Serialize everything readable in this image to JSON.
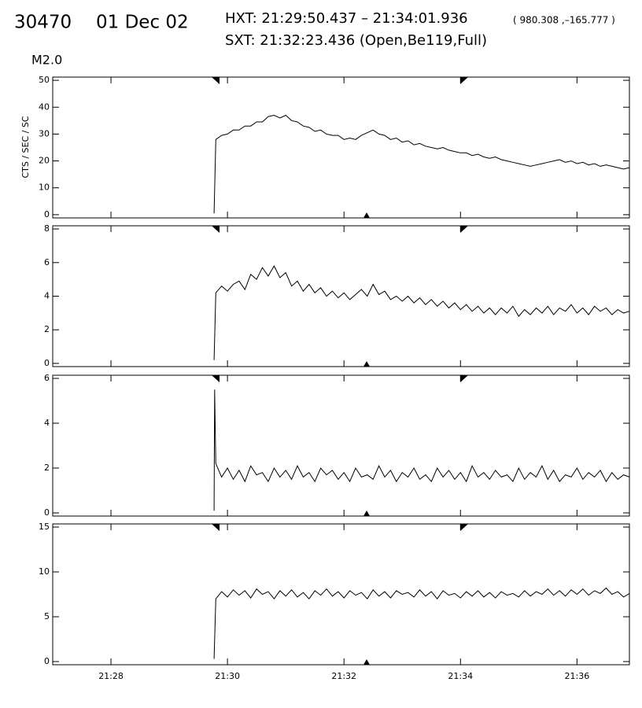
{
  "header": {
    "id": "30470",
    "date": "01 Dec 02",
    "hxt": "HXT: 21:29:50.437 – 21:34:01.936",
    "coords": "( 980.308 ,–165.777 )",
    "sxt": "SXT: 21:32:23.436 (Open,Be119,Full)",
    "class": "M2.0"
  },
  "chart_data": [
    {
      "type": "line",
      "ylabel": "CTS / SEC / SC",
      "color": "#000000",
      "xlim": [
        27.0,
        36.9
      ],
      "ylim": [
        -1.2,
        51.2
      ],
      "yticks": [
        0,
        10,
        20,
        30,
        40,
        50
      ],
      "x": [
        29.77,
        29.8,
        29.9,
        30.0,
        30.1,
        30.2,
        30.3,
        30.4,
        30.5,
        30.6,
        30.7,
        30.8,
        30.9,
        31.0,
        31.1,
        31.2,
        31.3,
        31.4,
        31.5,
        31.6,
        31.7,
        31.8,
        31.9,
        32.0,
        32.1,
        32.2,
        32.3,
        32.4,
        32.5,
        32.6,
        32.7,
        32.8,
        32.9,
        33.0,
        33.1,
        33.2,
        33.3,
        33.4,
        33.5,
        33.6,
        33.7,
        33.8,
        33.9,
        34.0,
        34.1,
        34.2,
        34.3,
        34.4,
        34.5,
        34.6,
        34.7,
        34.8,
        34.9,
        35.0,
        35.1,
        35.2,
        35.3,
        35.4,
        35.5,
        35.6,
        35.7,
        35.8,
        35.9,
        36.0,
        36.1,
        36.2,
        36.3,
        36.4,
        36.5,
        36.6,
        36.7,
        36.8,
        36.9
      ],
      "values": [
        0.5,
        28,
        29.5,
        30,
        31.5,
        31.5,
        33,
        33,
        34.5,
        34.5,
        36.5,
        37,
        36,
        37,
        35,
        34.5,
        33,
        32.5,
        31,
        31.5,
        30,
        29.5,
        29.5,
        28,
        28.5,
        28,
        29.5,
        30.5,
        31.5,
        30,
        29.5,
        28,
        28.5,
        27,
        27.5,
        26,
        26.5,
        25.5,
        25,
        24.5,
        25,
        24,
        23.5,
        23,
        23,
        22,
        22.5,
        21.5,
        21,
        21.5,
        20.5,
        20,
        19.5,
        19,
        18.5,
        18,
        18.5,
        19,
        19.5,
        20,
        20.5,
        19.5,
        20,
        19,
        19.5,
        18.5,
        19,
        18,
        18.5,
        18,
        17.5,
        17,
        17.5
      ]
    },
    {
      "type": "line",
      "color": "#000000",
      "xlim": [
        27.0,
        36.9
      ],
      "ylim": [
        -0.19,
        8.19
      ],
      "yticks": [
        0,
        2,
        4,
        6,
        8
      ],
      "x": [
        29.77,
        29.8,
        29.9,
        30.0,
        30.1,
        30.2,
        30.3,
        30.4,
        30.5,
        30.6,
        30.7,
        30.8,
        30.9,
        31.0,
        31.1,
        31.2,
        31.3,
        31.4,
        31.5,
        31.6,
        31.7,
        31.8,
        31.9,
        32.0,
        32.1,
        32.2,
        32.3,
        32.4,
        32.5,
        32.6,
        32.7,
        32.8,
        32.9,
        33.0,
        33.1,
        33.2,
        33.3,
        33.4,
        33.5,
        33.6,
        33.7,
        33.8,
        33.9,
        34.0,
        34.1,
        34.2,
        34.3,
        34.4,
        34.5,
        34.6,
        34.7,
        34.8,
        34.9,
        35.0,
        35.1,
        35.2,
        35.3,
        35.4,
        35.5,
        35.6,
        35.7,
        35.8,
        35.9,
        36.0,
        36.1,
        36.2,
        36.3,
        36.4,
        36.5,
        36.6,
        36.7,
        36.8,
        36.9
      ],
      "values": [
        0.2,
        4.2,
        4.6,
        4.3,
        4.7,
        4.9,
        4.4,
        5.3,
        5.0,
        5.7,
        5.2,
        5.8,
        5.1,
        5.4,
        4.6,
        4.9,
        4.3,
        4.7,
        4.2,
        4.5,
        4.0,
        4.3,
        3.9,
        4.2,
        3.8,
        4.1,
        4.4,
        4.0,
        4.7,
        4.1,
        4.3,
        3.8,
        4.0,
        3.7,
        4.0,
        3.6,
        3.9,
        3.5,
        3.8,
        3.4,
        3.7,
        3.3,
        3.6,
        3.2,
        3.5,
        3.1,
        3.4,
        3.0,
        3.3,
        2.9,
        3.3,
        3.0,
        3.4,
        2.8,
        3.2,
        2.9,
        3.3,
        3.0,
        3.4,
        2.9,
        3.3,
        3.1,
        3.5,
        3.0,
        3.3,
        2.9,
        3.4,
        3.1,
        3.3,
        2.9,
        3.2,
        3.0,
        3.1
      ]
    },
    {
      "type": "line",
      "color": "#000000",
      "xlim": [
        27.0,
        36.9
      ],
      "ylim": [
        -0.14,
        6.14
      ],
      "yticks": [
        0,
        2,
        4,
        6
      ],
      "x": [
        29.77,
        29.78,
        29.8,
        29.9,
        30.0,
        30.1,
        30.2,
        30.3,
        30.4,
        30.5,
        30.6,
        30.7,
        30.8,
        30.9,
        31.0,
        31.1,
        31.2,
        31.3,
        31.4,
        31.5,
        31.6,
        31.7,
        31.8,
        31.9,
        32.0,
        32.1,
        32.2,
        32.3,
        32.4,
        32.5,
        32.6,
        32.7,
        32.8,
        32.9,
        33.0,
        33.1,
        33.2,
        33.3,
        33.4,
        33.5,
        33.6,
        33.7,
        33.8,
        33.9,
        34.0,
        34.1,
        34.2,
        34.3,
        34.4,
        34.5,
        34.6,
        34.7,
        34.8,
        34.9,
        35.0,
        35.1,
        35.2,
        35.3,
        35.4,
        35.5,
        35.6,
        35.7,
        35.8,
        35.9,
        36.0,
        36.1,
        36.2,
        36.3,
        36.4,
        36.5,
        36.6,
        36.7,
        36.8,
        36.9
      ],
      "values": [
        0.1,
        5.5,
        2.2,
        1.6,
        2.0,
        1.5,
        1.9,
        1.4,
        2.1,
        1.7,
        1.8,
        1.4,
        2.0,
        1.6,
        1.9,
        1.5,
        2.1,
        1.6,
        1.8,
        1.4,
        2.0,
        1.7,
        1.9,
        1.5,
        1.8,
        1.4,
        2.0,
        1.6,
        1.7,
        1.5,
        2.1,
        1.6,
        1.9,
        1.4,
        1.8,
        1.6,
        2.0,
        1.5,
        1.7,
        1.4,
        2.0,
        1.6,
        1.9,
        1.5,
        1.8,
        1.4,
        2.1,
        1.6,
        1.8,
        1.5,
        1.9,
        1.6,
        1.7,
        1.4,
        2.0,
        1.5,
        1.8,
        1.6,
        2.1,
        1.5,
        1.9,
        1.4,
        1.7,
        1.6,
        2.0,
        1.5,
        1.8,
        1.6,
        1.9,
        1.4,
        1.8,
        1.5,
        1.7,
        1.6
      ]
    },
    {
      "type": "line",
      "color": "#000000",
      "xlim": [
        27.0,
        36.9
      ],
      "ylim": [
        -0.35,
        15.35
      ],
      "yticks": [
        0,
        5,
        10,
        15
      ],
      "xticks": [
        {
          "value": 28,
          "label": "21:28"
        },
        {
          "value": 30,
          "label": "21:30"
        },
        {
          "value": 32,
          "label": "21:32"
        },
        {
          "value": 34,
          "label": "21:34"
        },
        {
          "value": 36,
          "label": "21:36"
        }
      ],
      "x": [
        29.77,
        29.8,
        29.9,
        30.0,
        30.1,
        30.2,
        30.3,
        30.4,
        30.5,
        30.6,
        30.7,
        30.8,
        30.9,
        31.0,
        31.1,
        31.2,
        31.3,
        31.4,
        31.5,
        31.6,
        31.7,
        31.8,
        31.9,
        32.0,
        32.1,
        32.2,
        32.3,
        32.4,
        32.5,
        32.6,
        32.7,
        32.8,
        32.9,
        33.0,
        33.1,
        33.2,
        33.3,
        33.4,
        33.5,
        33.6,
        33.7,
        33.8,
        33.9,
        34.0,
        34.1,
        34.2,
        34.3,
        34.4,
        34.5,
        34.6,
        34.7,
        34.8,
        34.9,
        35.0,
        35.1,
        35.2,
        35.3,
        35.4,
        35.5,
        35.6,
        35.7,
        35.8,
        35.9,
        36.0,
        36.1,
        36.2,
        36.3,
        36.4,
        36.5,
        36.6,
        36.7,
        36.8,
        36.9
      ],
      "values": [
        0.3,
        7.0,
        7.8,
        7.2,
        8.0,
        7.4,
        7.9,
        7.1,
        8.1,
        7.5,
        7.8,
        7.0,
        7.9,
        7.3,
        8.0,
        7.2,
        7.7,
        7.0,
        7.9,
        7.4,
        8.1,
        7.3,
        7.8,
        7.1,
        7.9,
        7.4,
        7.7,
        7.0,
        8.0,
        7.3,
        7.8,
        7.1,
        7.9,
        7.5,
        7.7,
        7.2,
        8.0,
        7.3,
        7.8,
        7.0,
        7.9,
        7.4,
        7.6,
        7.1,
        7.8,
        7.3,
        7.9,
        7.2,
        7.7,
        7.1,
        7.8,
        7.4,
        7.6,
        7.2,
        7.9,
        7.3,
        7.8,
        7.5,
        8.1,
        7.4,
        7.9,
        7.3,
        8.0,
        7.5,
        8.1,
        7.4,
        7.9,
        7.6,
        8.2,
        7.5,
        7.8,
        7.2,
        7.6
      ]
    }
  ]
}
